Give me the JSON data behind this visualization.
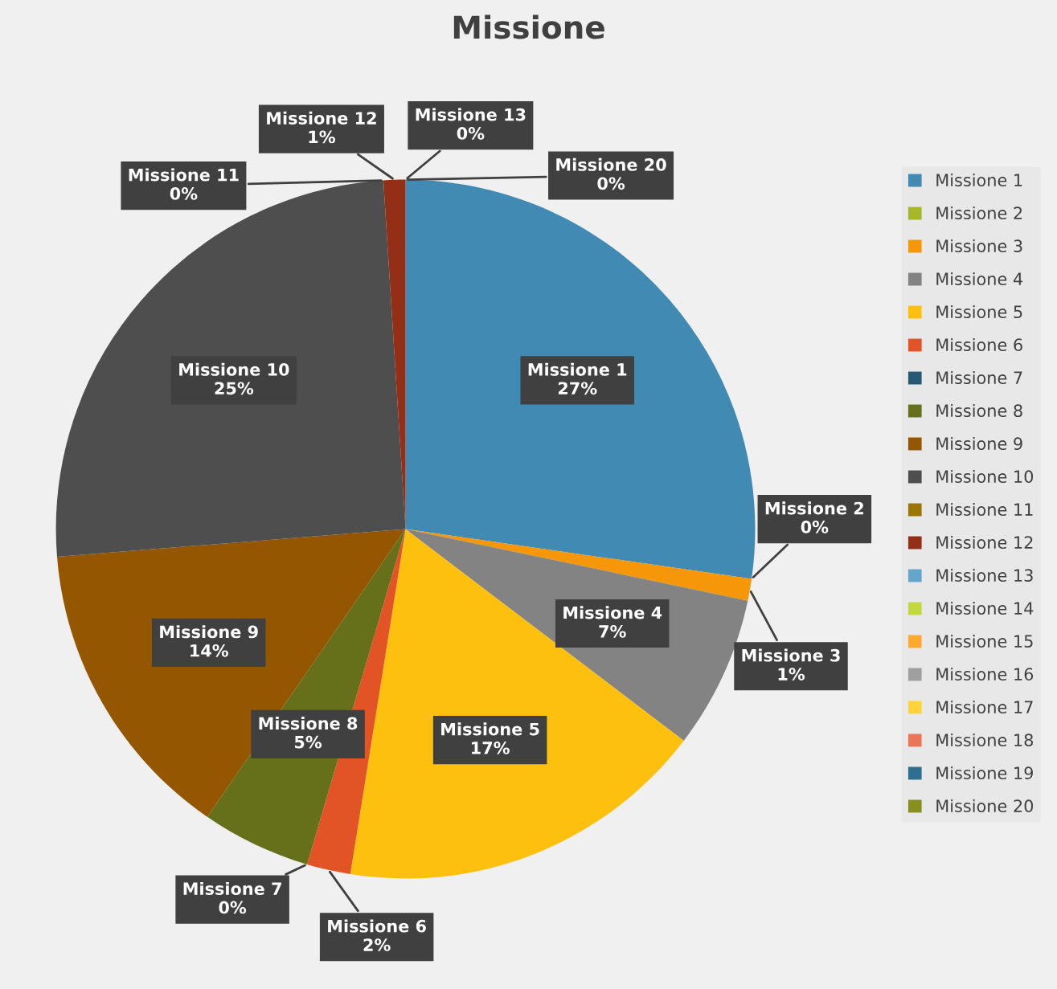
{
  "chart_data": {
    "type": "pie",
    "title": "Missione",
    "categories": [
      "Missione 1",
      "Missione 2",
      "Missione 3",
      "Missione 4",
      "Missione 5",
      "Missione 6",
      "Missione 7",
      "Missione 8",
      "Missione 9",
      "Missione 10",
      "Missione 11",
      "Missione 12",
      "Missione 13",
      "Missione 14",
      "Missione 15",
      "Missione 16",
      "Missione 17",
      "Missione 18",
      "Missione 19",
      "Missione 20"
    ],
    "values": [
      27,
      0,
      1,
      7,
      17,
      2,
      0,
      5,
      14,
      25,
      0,
      1,
      0,
      null,
      null,
      null,
      null,
      null,
      null,
      0
    ],
    "value_labels": [
      "27%",
      "0%",
      "1%",
      "7%",
      "17%",
      "2%",
      "0%",
      "5%",
      "14%",
      "25%",
      "0%",
      "1%",
      "0%",
      null,
      null,
      null,
      null,
      null,
      null,
      "0%"
    ],
    "colors": [
      "#418ab3",
      "#a6b727",
      "#f59709",
      "#838383",
      "#fec00f",
      "#e25326",
      "#265a73",
      "#666f1a",
      "#955600",
      "#4e4e4e",
      "#9b7500",
      "#932f17",
      "#64a6cb",
      "#c3d83e",
      "#ffa930",
      "#9f9f9f",
      "#ffd33a",
      "#ea7557",
      "#2e6f90",
      "#868f1f"
    ],
    "legend": "right"
  }
}
